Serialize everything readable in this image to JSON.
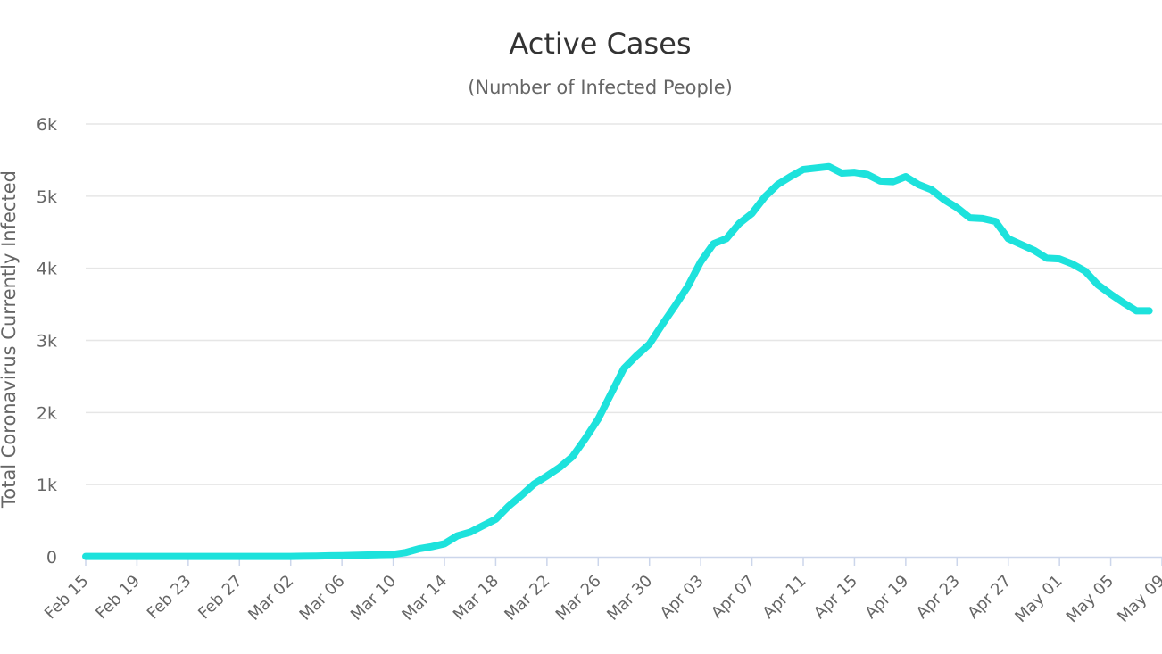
{
  "chart_data": {
    "type": "line",
    "title": "Active Cases",
    "subtitle": "(Number of Infected People)",
    "ylabel": "Total Coronavirus Currently Infected",
    "xlabel": "",
    "ylim": [
      0,
      6000
    ],
    "yticks": [
      0,
      1000,
      2000,
      3000,
      4000,
      5000,
      6000
    ],
    "ytick_labels": [
      "0",
      "1k",
      "2k",
      "3k",
      "4k",
      "5k",
      "6k"
    ],
    "xtick_labels": [
      "Feb 15",
      "Feb 19",
      "Feb 23",
      "Feb 27",
      "Mar 02",
      "Mar 06",
      "Mar 10",
      "Mar 14",
      "Mar 18",
      "Mar 22",
      "Mar 26",
      "Mar 30",
      "Apr 03",
      "Apr 07",
      "Apr 11",
      "Apr 15",
      "Apr 19",
      "Apr 23",
      "Apr 27",
      "May 01",
      "May 05",
      "May 09"
    ],
    "grid": true,
    "legend": "none",
    "series_color": "#1de2dc",
    "x": [
      "Feb 15",
      "Feb 16",
      "Feb 17",
      "Feb 18",
      "Feb 19",
      "Feb 20",
      "Feb 21",
      "Feb 22",
      "Feb 23",
      "Feb 24",
      "Feb 25",
      "Feb 26",
      "Feb 27",
      "Feb 28",
      "Feb 29",
      "Mar 01",
      "Mar 02",
      "Mar 03",
      "Mar 04",
      "Mar 05",
      "Mar 06",
      "Mar 07",
      "Mar 08",
      "Mar 09",
      "Mar 10",
      "Mar 11",
      "Mar 12",
      "Mar 13",
      "Mar 14",
      "Mar 15",
      "Mar 16",
      "Mar 17",
      "Mar 18",
      "Mar 19",
      "Mar 20",
      "Mar 21",
      "Mar 22",
      "Mar 23",
      "Mar 24",
      "Mar 25",
      "Mar 26",
      "Mar 27",
      "Mar 28",
      "Mar 29",
      "Mar 30",
      "Mar 31",
      "Apr 01",
      "Apr 02",
      "Apr 03",
      "Apr 04",
      "Apr 05",
      "Apr 06",
      "Apr 07",
      "Apr 08",
      "Apr 09",
      "Apr 10",
      "Apr 11",
      "Apr 12",
      "Apr 13",
      "Apr 14",
      "Apr 15",
      "Apr 16",
      "Apr 17",
      "Apr 18",
      "Apr 19",
      "Apr 20",
      "Apr 21",
      "Apr 22",
      "Apr 23",
      "Apr 24",
      "Apr 25",
      "Apr 26",
      "Apr 27",
      "Apr 28",
      "Apr 29",
      "Apr 30",
      "May 01",
      "May 02",
      "May 03",
      "May 04",
      "May 05",
      "May 06",
      "May 07",
      "May 08"
    ],
    "series": [
      {
        "values": [
          5,
          5,
          5,
          5,
          5,
          5,
          5,
          5,
          5,
          5,
          5,
          5,
          5,
          5,
          5,
          5,
          5,
          8,
          10,
          14,
          16,
          20,
          25,
          30,
          33,
          60,
          110,
          140,
          180,
          290,
          340,
          430,
          520,
          700,
          850,
          1010,
          1120,
          1240,
          1390,
          1640,
          1910,
          2260,
          2610,
          2790,
          2950,
          3220,
          3480,
          3750,
          4090,
          4340,
          4410,
          4620,
          4760,
          4990,
          5160,
          5270,
          5370,
          5390,
          5410,
          5320,
          5330,
          5300,
          5210,
          5200,
          5270,
          5160,
          5090,
          4950,
          4840,
          4700,
          4690,
          4650,
          4410,
          4330,
          4250,
          4140,
          4130,
          4060,
          3960,
          3770,
          3640,
          3520,
          3410,
          3410
        ]
      }
    ]
  }
}
